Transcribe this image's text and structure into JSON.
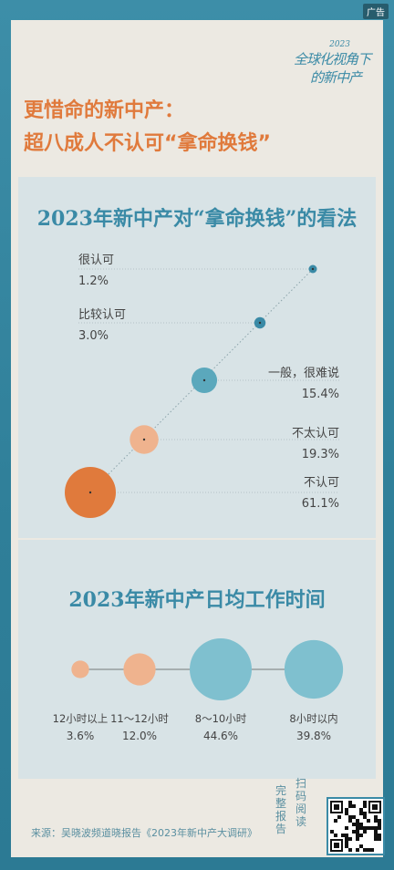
{
  "ad_tag": "广告",
  "brand": {
    "year": "2023",
    "line1": "全球化视角下",
    "line2": "的新中产"
  },
  "headline": {
    "line1": "更惜命的新中产：",
    "line2": "超八成人不认可“拿命换钱”"
  },
  "chart_data": [
    {
      "type": "scatter",
      "title": "2023年新中产对“拿命换钱”的看法",
      "categories": [
        "很认可",
        "比较认可",
        "一般，很难说",
        "不太认可",
        "不认可"
      ],
      "values": [
        1.2,
        3.0,
        15.4,
        19.3,
        61.1
      ],
      "labels": [
        "1.2%",
        "3.0%",
        "15.4%",
        "19.3%",
        "61.1%"
      ],
      "colors": [
        "#3a8aa6",
        "#3a8aa6",
        "#5ba8bc",
        "#efb38e",
        "#e07a3c"
      ]
    },
    {
      "type": "scatter",
      "title": "2023年新中产日均工作时间",
      "categories": [
        "12小时以上",
        "11～12小时",
        "8～10小时",
        "8小时以内"
      ],
      "values": [
        3.6,
        12.0,
        44.6,
        39.8
      ],
      "labels": [
        "3.6%",
        "12.0%",
        "44.6%",
        "39.8%"
      ],
      "colors": [
        "#efb38e",
        "#efb38e",
        "#7fc0cf",
        "#7fc0cf"
      ]
    }
  ],
  "source": "来源：吴晓波频道晓报告《2023年新中产大调研》",
  "qr": {
    "left_label": "完整报告",
    "right_label": "扫码阅读"
  }
}
